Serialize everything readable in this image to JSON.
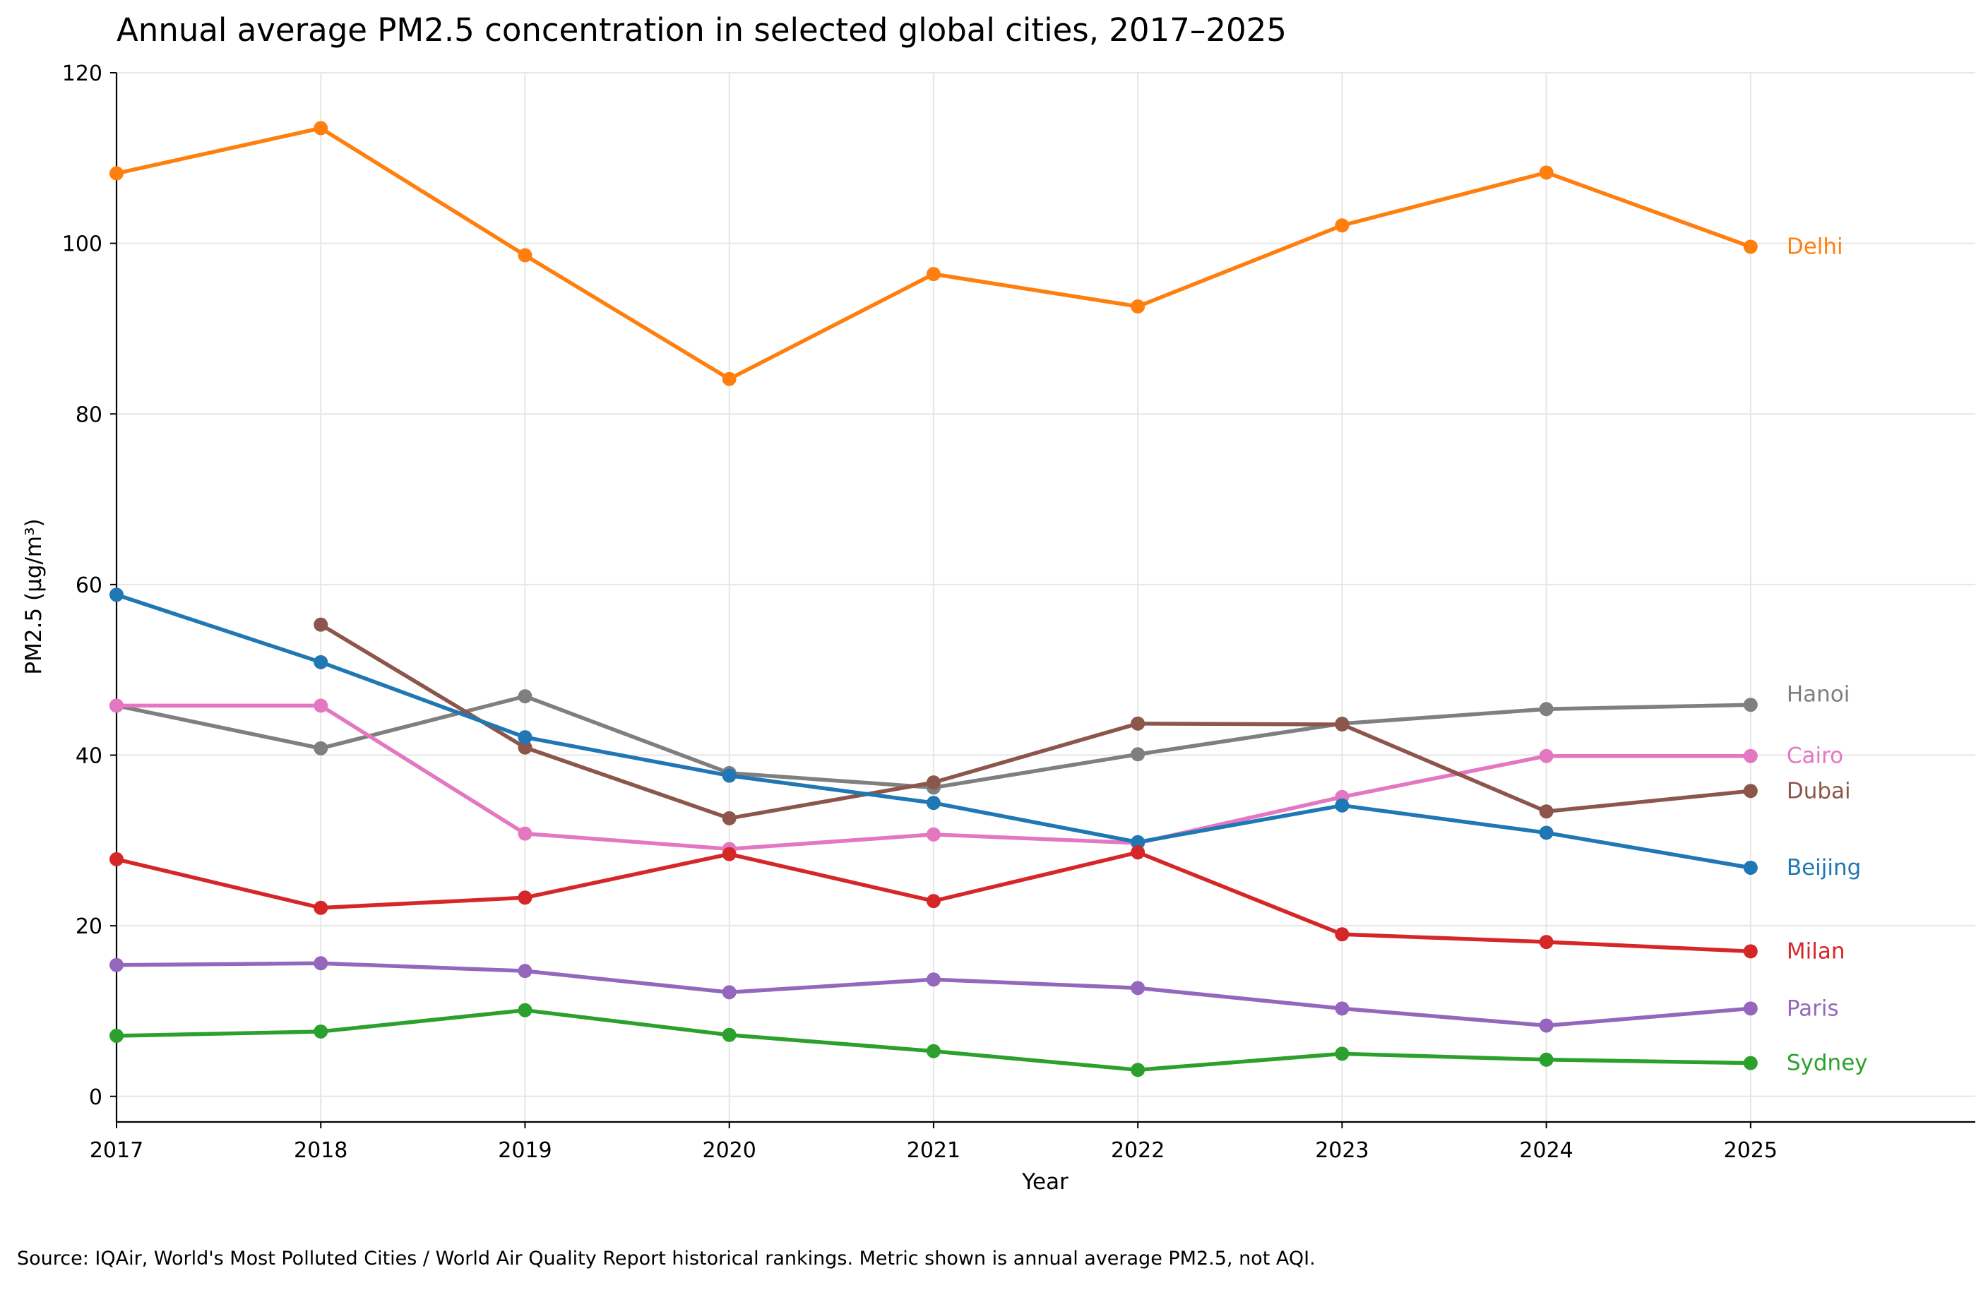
{
  "chart_data": {
    "type": "line",
    "title": "Annual average PM2.5 concentration in selected global cities, 2017–2025",
    "xlabel": "Year",
    "ylabel": "PM2.5 (µg/m³)",
    "x": [
      2017,
      2018,
      2019,
      2020,
      2021,
      2022,
      2023,
      2024,
      2025
    ],
    "xlim": [
      2017,
      2026.1
    ],
    "ylim": [
      -3,
      120
    ],
    "yticks": [
      0,
      20,
      40,
      60,
      80,
      100,
      120
    ],
    "grid": true,
    "legend": "end-of-line labels",
    "series": [
      {
        "name": "Delhi",
        "color": "#ff7f0e",
        "values": [
          108.2,
          113.5,
          98.6,
          84.1,
          96.4,
          92.6,
          102.1,
          108.3,
          99.6
        ]
      },
      {
        "name": "Hanoi",
        "color": "#7f7f7f",
        "values": [
          45.8,
          40.8,
          46.9,
          37.9,
          36.2,
          40.1,
          43.7,
          45.4,
          45.9
        ]
      },
      {
        "name": "Cairo",
        "color": "#e377c2",
        "values": [
          45.8,
          45.8,
          30.8,
          29.0,
          30.7,
          29.7,
          35.1,
          39.9,
          39.9
        ]
      },
      {
        "name": "Dubai",
        "color": "#8c564b",
        "values": [
          null,
          55.3,
          40.9,
          32.6,
          36.8,
          43.7,
          43.6,
          33.4,
          35.8
        ]
      },
      {
        "name": "Beijing",
        "color": "#1f77b4",
        "values": [
          58.8,
          50.9,
          42.1,
          37.6,
          34.4,
          29.8,
          34.1,
          30.9,
          26.8
        ]
      },
      {
        "name": "Milan",
        "color": "#d62728",
        "values": [
          27.8,
          22.1,
          23.3,
          28.4,
          22.9,
          28.6,
          19.0,
          18.1,
          17.0
        ]
      },
      {
        "name": "Paris",
        "color": "#9467bd",
        "values": [
          15.4,
          15.6,
          14.7,
          12.2,
          13.7,
          12.7,
          10.3,
          8.3,
          10.3
        ]
      },
      {
        "name": "Sydney",
        "color": "#2ca02c",
        "values": [
          7.1,
          7.6,
          10.1,
          7.2,
          5.3,
          3.1,
          5.0,
          4.3,
          3.9
        ]
      }
    ]
  },
  "footer": {
    "source": "Source: IQAir, World's Most Polluted Cities / World Air Quality Report historical rankings. Metric shown is annual average PM2.5, not AQI."
  }
}
